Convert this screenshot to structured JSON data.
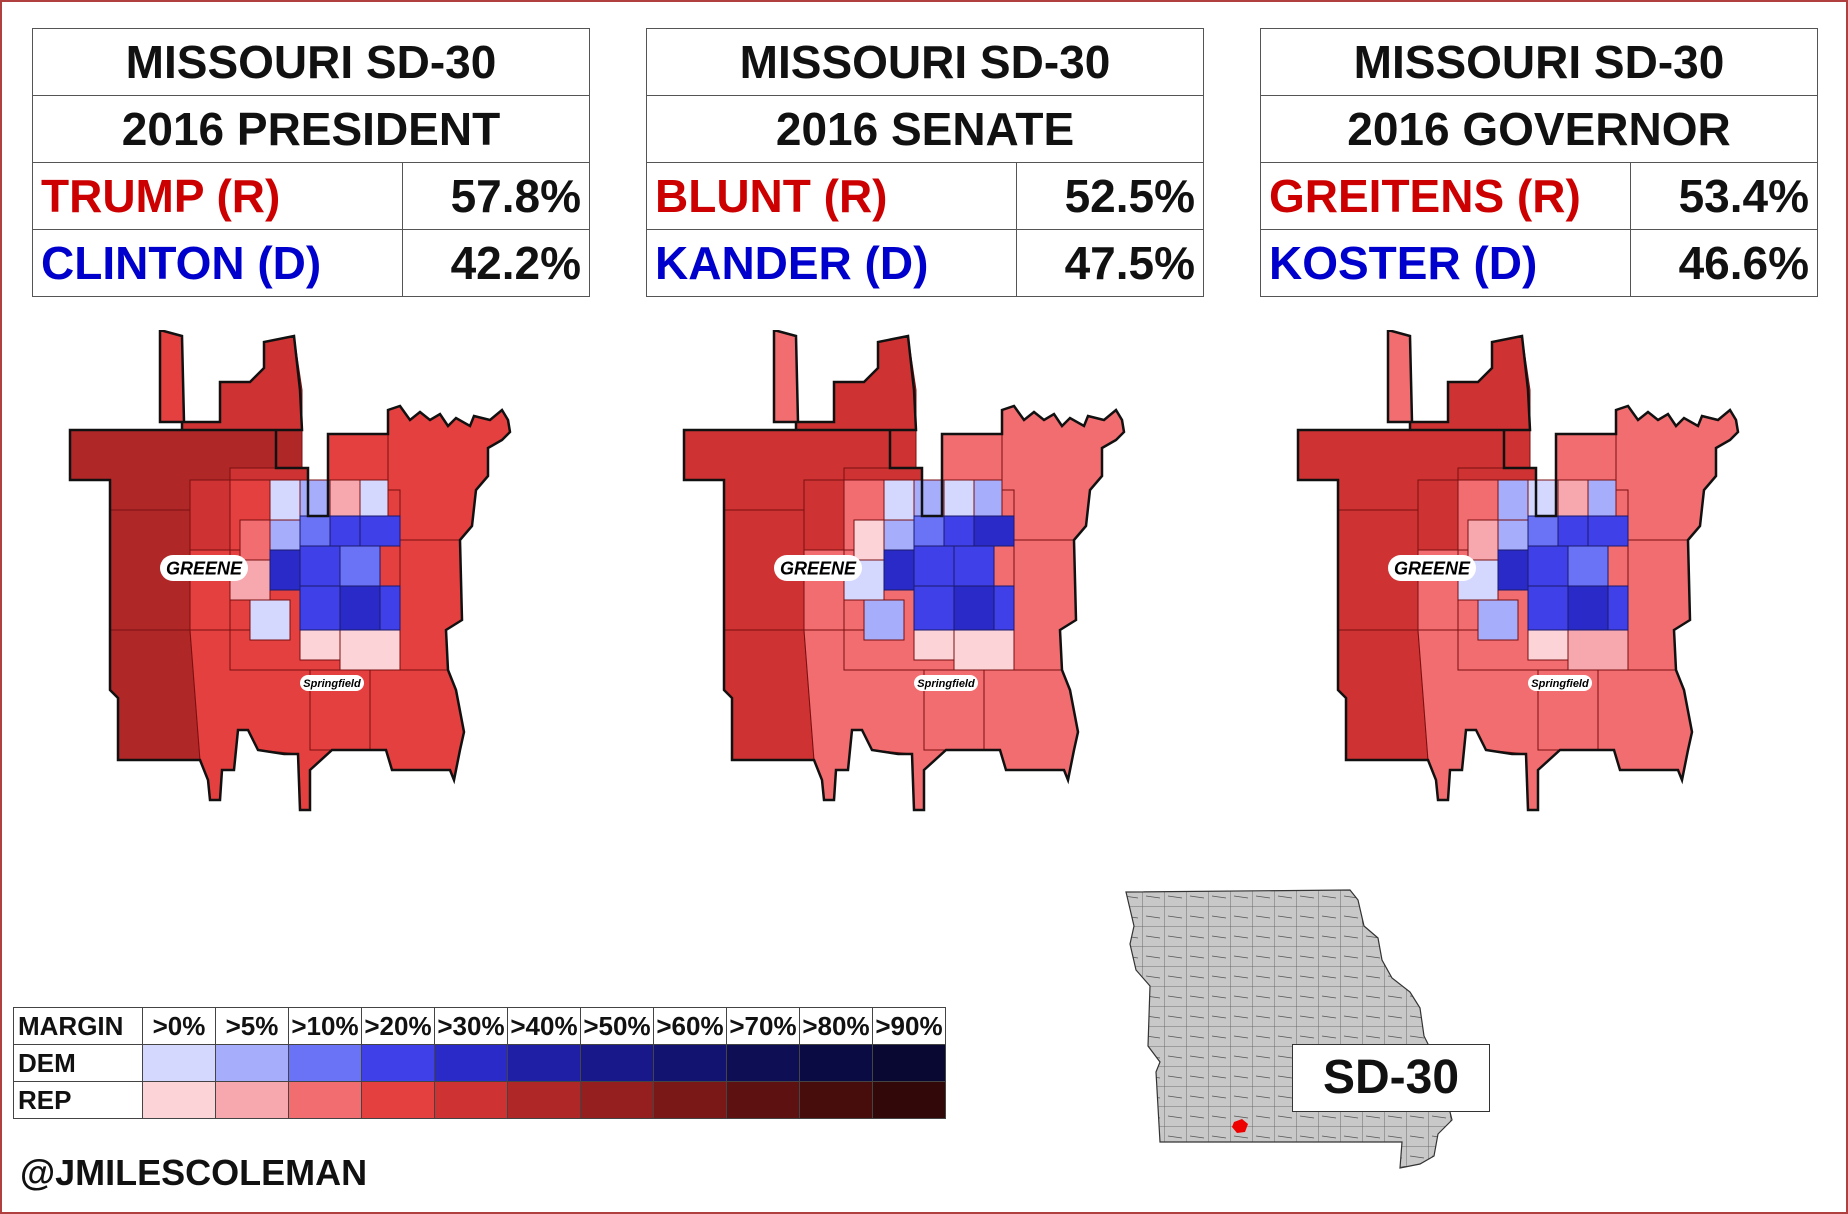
{
  "panels": [
    {
      "district": "MISSOURI SD-30",
      "race": "2016 PRESIDENT",
      "candidates": [
        {
          "name": "TRUMP (R)",
          "pct": "57.8%",
          "color": "#cc0000"
        },
        {
          "name": "CLINTON (D)",
          "pct": "42.2%",
          "color": "#0000cc"
        }
      ],
      "county_label": "GREENE",
      "city_label": "Springfield",
      "map_variant": "president"
    },
    {
      "district": "MISSOURI SD-30",
      "race": "2016 SENATE",
      "candidates": [
        {
          "name": "BLUNT (R)",
          "pct": "52.5%",
          "color": "#cc0000"
        },
        {
          "name": "KANDER (D)",
          "pct": "47.5%",
          "color": "#0000cc"
        }
      ],
      "county_label": "GREENE",
      "city_label": "Springfield",
      "map_variant": "senate"
    },
    {
      "district": "MISSOURI SD-30",
      "race": "2016 GOVERNOR",
      "candidates": [
        {
          "name": "GREITENS (R)",
          "pct": "53.4%",
          "color": "#cc0000"
        },
        {
          "name": "KOSTER (D)",
          "pct": "46.6%",
          "color": "#0000cc"
        }
      ],
      "county_label": "GREENE",
      "city_label": "Springfield",
      "map_variant": "governor"
    }
  ],
  "legend": {
    "margin_label": "MARGIN",
    "thresholds": [
      ">0%",
      ">5%",
      ">10%",
      ">20%",
      ">30%",
      ">40%",
      ">50%",
      ">60%",
      ">70%",
      ">80%",
      ">90%"
    ],
    "rows": [
      {
        "label": "DEM",
        "colors": [
          "#d4d8ff",
          "#a6aefc",
          "#6a72f5",
          "#4040e8",
          "#2a2ac8",
          "#1f1fa6",
          "#18188a",
          "#121270",
          "#0e0e55",
          "#0b0b44",
          "#080833"
        ]
      },
      {
        "label": "REP",
        "colors": [
          "#fcd4d8",
          "#f7a8ae",
          "#f16d6f",
          "#e44040",
          "#cf3232",
          "#b02727",
          "#951f1f",
          "#7a1717",
          "#5e1111",
          "#470c0c",
          "#330808"
        ]
      }
    ]
  },
  "credit": "@JMILESCOLEMAN",
  "locator": {
    "label": "SD-30",
    "district_color": "#ee0000",
    "county_color": "#c8c8c8"
  }
}
